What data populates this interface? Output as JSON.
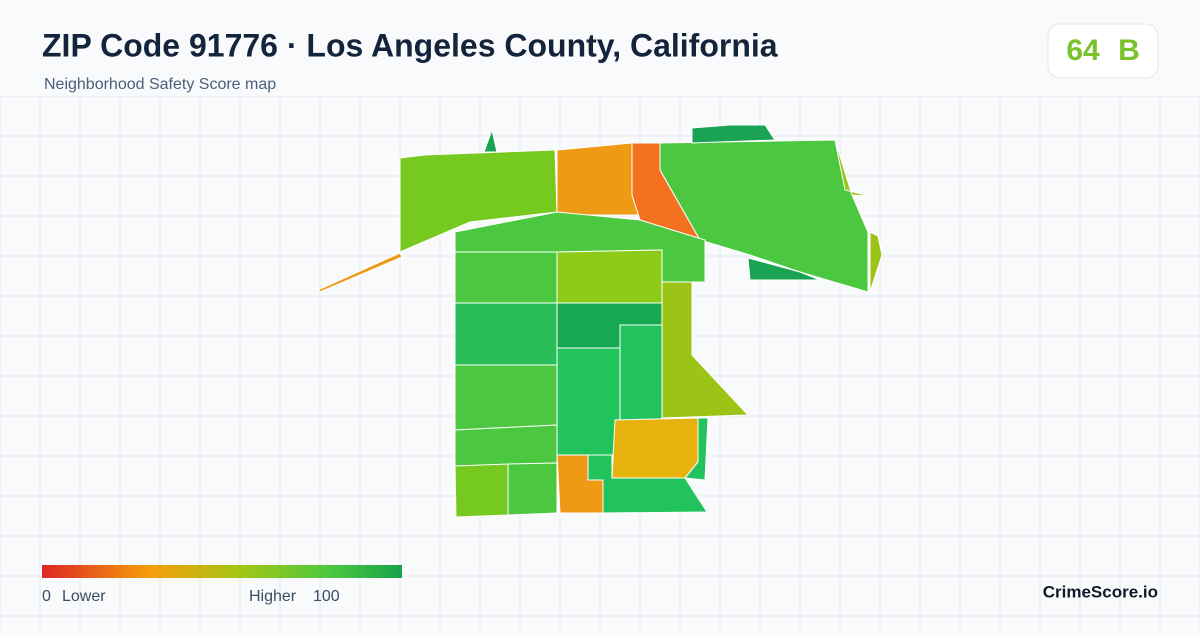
{
  "header": {
    "title": "ZIP Code 91776 · Los Angeles County, California",
    "subtitle": "Neighborhood Safety Score map",
    "score": 64,
    "grade": "B"
  },
  "legend": {
    "min": 0,
    "low_label": "Lower",
    "high_label": "Higher",
    "max": 100
  },
  "footer": {
    "brand": "CrimeScore.io"
  }
}
